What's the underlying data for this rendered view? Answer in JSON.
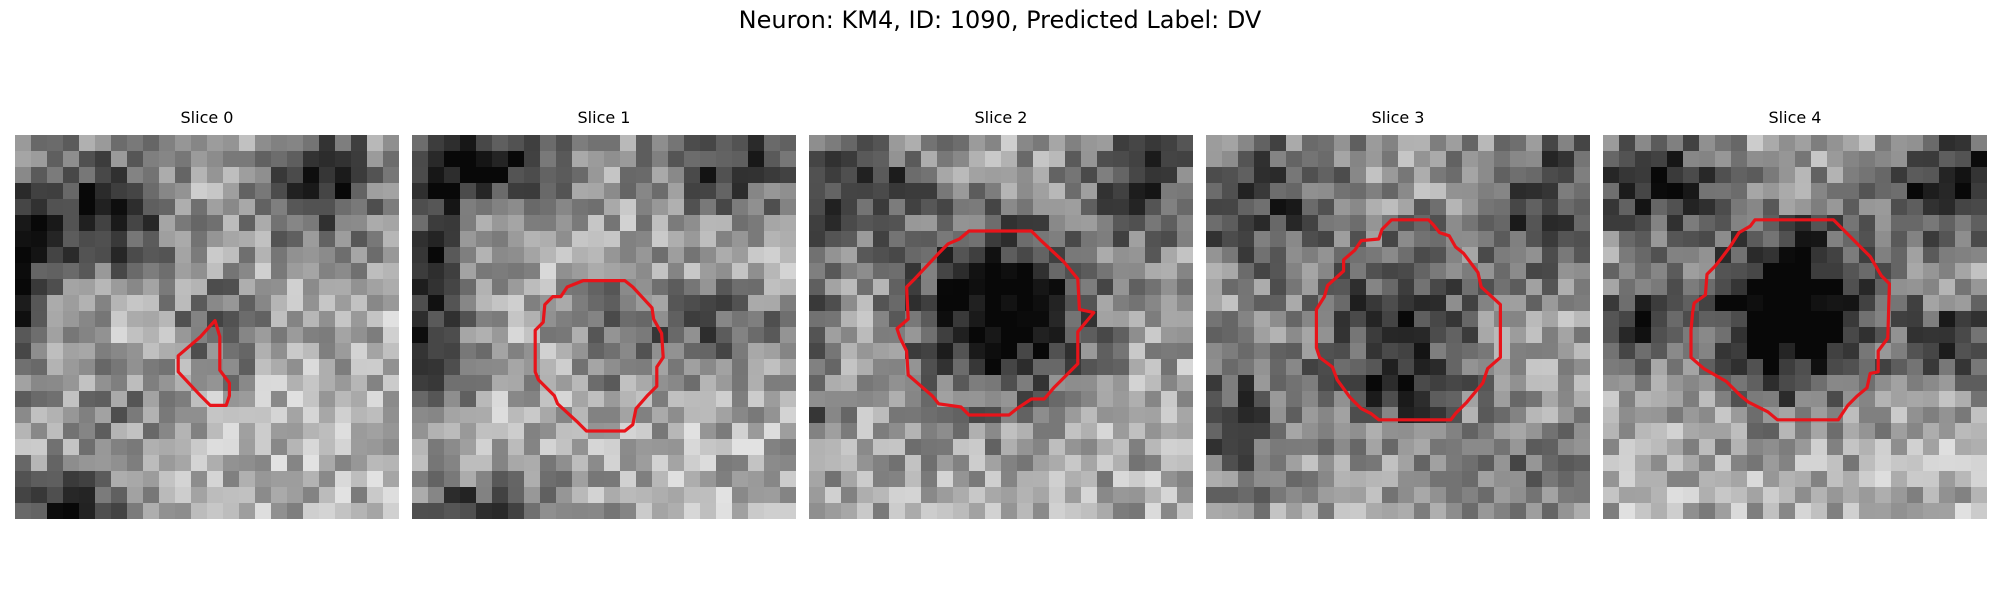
{
  "figure": {
    "title": "Neuron: KM4, ID: 1090, Predicted Label: DV",
    "contour_color": "#e8141a",
    "colormap": "grayscale",
    "grid_size": 24,
    "panels": [
      {
        "title": "Slice 0",
        "contour_icon": "roi-contour-small",
        "dark_blobs": [
          {
            "cx": 5,
            "cy": 5,
            "rx": 5,
            "ry": 4,
            "s": 0.6
          },
          {
            "cx": 19,
            "cy": 3,
            "rx": 4,
            "ry": 4,
            "s": 0.6
          },
          {
            "cx": 0,
            "cy": 9,
            "rx": 2,
            "ry": 7,
            "s": 0.6
          },
          {
            "cx": 13,
            "cy": 12,
            "rx": 3,
            "ry": 3,
            "s": 0.4
          },
          {
            "cx": 3,
            "cy": 23,
            "rx": 4,
            "ry": 2,
            "s": 0.6
          },
          {
            "cx": 6,
            "cy": 17,
            "rx": 3,
            "ry": 3,
            "s": 0.2
          }
        ],
        "base": 0.68,
        "contour": [
          [
            12.5,
            11.6
          ],
          [
            11.6,
            12.6
          ],
          [
            10.2,
            13.8
          ],
          [
            10.2,
            14.8
          ],
          [
            11.6,
            16.3
          ],
          [
            12.2,
            16.9
          ],
          [
            13.2,
            16.9
          ],
          [
            13.4,
            16.3
          ],
          [
            13.4,
            15.5
          ],
          [
            12.8,
            14.7
          ],
          [
            12.8,
            12.6
          ]
        ]
      },
      {
        "title": "Slice 1",
        "contour_icon": "roi-contour-medium",
        "dark_blobs": [
          {
            "cx": 5,
            "cy": 2,
            "rx": 6,
            "ry": 3,
            "s": 0.55
          },
          {
            "cx": 20,
            "cy": 2,
            "rx": 5,
            "ry": 3,
            "s": 0.5
          },
          {
            "cx": 1,
            "cy": 10,
            "rx": 3,
            "ry": 9,
            "s": 0.55
          },
          {
            "cx": 13,
            "cy": 12,
            "rx": 4,
            "ry": 4,
            "s": 0.3
          },
          {
            "cx": 20,
            "cy": 12,
            "rx": 4,
            "ry": 3,
            "s": 0.35
          },
          {
            "cx": 5,
            "cy": 23,
            "rx": 5,
            "ry": 2,
            "s": 0.4
          }
        ],
        "base": 0.68,
        "contour": [
          [
            10.7,
            9.1
          ],
          [
            13.3,
            9.1
          ],
          [
            13.8,
            9.5
          ],
          [
            15.0,
            10.8
          ],
          [
            15.1,
            11.5
          ],
          [
            15.6,
            12.4
          ],
          [
            15.7,
            13.9
          ],
          [
            15.3,
            14.5
          ],
          [
            15.3,
            15.7
          ],
          [
            14.7,
            16.3
          ],
          [
            14.0,
            17.1
          ],
          [
            13.8,
            18.1
          ],
          [
            13.3,
            18.5
          ],
          [
            10.9,
            18.5
          ],
          [
            10.3,
            17.9
          ],
          [
            9.1,
            16.8
          ],
          [
            8.9,
            16.3
          ],
          [
            7.9,
            15.3
          ],
          [
            7.7,
            14.8
          ],
          [
            7.7,
            12.2
          ],
          [
            8.2,
            11.7
          ],
          [
            8.3,
            10.6
          ],
          [
            8.8,
            10.1
          ],
          [
            9.3,
            10.1
          ],
          [
            9.7,
            9.5
          ]
        ]
      },
      {
        "title": "Slice 2",
        "contour_icon": "roi-contour-large",
        "dark_blobs": [
          {
            "cx": 12,
            "cy": 11,
            "rx": 6,
            "ry": 6,
            "s": 0.75
          },
          {
            "cx": 3,
            "cy": 3,
            "rx": 5,
            "ry": 4,
            "s": 0.45
          },
          {
            "cx": 21,
            "cy": 3,
            "rx": 4,
            "ry": 4,
            "s": 0.45
          },
          {
            "cx": 0,
            "cy": 13,
            "rx": 2,
            "ry": 8,
            "s": 0.4
          }
        ],
        "base": 0.66,
        "contour": [
          [
            10.0,
            6.0
          ],
          [
            13.9,
            6.0
          ],
          [
            14.5,
            6.6
          ],
          [
            15.9,
            7.9
          ],
          [
            16.8,
            9.0
          ],
          [
            16.9,
            10.9
          ],
          [
            17.8,
            11.1
          ],
          [
            16.8,
            12.3
          ],
          [
            16.8,
            14.3
          ],
          [
            16.3,
            14.8
          ],
          [
            15.3,
            15.8
          ],
          [
            14.7,
            16.5
          ],
          [
            13.9,
            16.5
          ],
          [
            13.0,
            17.1
          ],
          [
            12.5,
            17.5
          ],
          [
            10.0,
            17.5
          ],
          [
            9.5,
            17.0
          ],
          [
            8.1,
            16.8
          ],
          [
            7.7,
            16.3
          ],
          [
            6.2,
            15.0
          ],
          [
            6.1,
            13.5
          ],
          [
            5.7,
            12.7
          ],
          [
            5.5,
            12.1
          ],
          [
            6.2,
            11.5
          ],
          [
            6.1,
            9.5
          ],
          [
            6.6,
            9.0
          ],
          [
            8.1,
            7.4
          ],
          [
            8.7,
            6.8
          ],
          [
            9.4,
            6.5
          ]
        ]
      },
      {
        "title": "Slice 3",
        "contour_icon": "roi-contour-large",
        "dark_blobs": [
          {
            "cx": 12,
            "cy": 12,
            "rx": 6,
            "ry": 6,
            "s": 0.4
          },
          {
            "cx": 12,
            "cy": 16,
            "rx": 4,
            "ry": 2,
            "s": 0.35
          },
          {
            "cx": 3,
            "cy": 4,
            "rx": 6,
            "ry": 5,
            "s": 0.4
          },
          {
            "cx": 21,
            "cy": 4,
            "rx": 5,
            "ry": 5,
            "s": 0.4
          },
          {
            "cx": 2,
            "cy": 18,
            "rx": 4,
            "ry": 5,
            "s": 0.35
          },
          {
            "cx": 21,
            "cy": 21,
            "rx": 5,
            "ry": 3,
            "s": 0.25
          }
        ],
        "base": 0.64,
        "contour": [
          [
            11.6,
            5.3
          ],
          [
            13.9,
            5.3
          ],
          [
            14.2,
            5.6
          ],
          [
            14.6,
            6.1
          ],
          [
            15.2,
            6.3
          ],
          [
            15.6,
            7.0
          ],
          [
            16.1,
            7.4
          ],
          [
            17.0,
            8.6
          ],
          [
            17.2,
            9.5
          ],
          [
            18.4,
            10.6
          ],
          [
            18.4,
            13.9
          ],
          [
            17.6,
            14.6
          ],
          [
            17.3,
            15.5
          ],
          [
            16.3,
            16.7
          ],
          [
            15.6,
            17.4
          ],
          [
            15.3,
            17.8
          ],
          [
            14.7,
            17.8
          ],
          [
            10.8,
            17.8
          ],
          [
            10.3,
            17.4
          ],
          [
            9.7,
            17.1
          ],
          [
            9.0,
            16.4
          ],
          [
            8.2,
            15.3
          ],
          [
            7.9,
            14.5
          ],
          [
            7.1,
            13.9
          ],
          [
            6.9,
            13.3
          ],
          [
            6.9,
            10.9
          ],
          [
            7.4,
            10.1
          ],
          [
            7.6,
            9.4
          ],
          [
            8.6,
            8.5
          ],
          [
            8.6,
            7.8
          ],
          [
            9.3,
            7.2
          ],
          [
            9.7,
            6.6
          ],
          [
            10.8,
            6.5
          ],
          [
            11.0,
            5.9
          ]
        ]
      },
      {
        "title": "Slice 4",
        "contour_icon": "roi-contour-large",
        "dark_blobs": [
          {
            "cx": 12,
            "cy": 11,
            "rx": 6,
            "ry": 6,
            "s": 0.85
          },
          {
            "cx": 3,
            "cy": 3,
            "rx": 5,
            "ry": 4,
            "s": 0.55
          },
          {
            "cx": 22,
            "cy": 3,
            "rx": 5,
            "ry": 4,
            "s": 0.6
          },
          {
            "cx": 2,
            "cy": 12,
            "rx": 3,
            "ry": 3,
            "s": 0.5
          },
          {
            "cx": 22,
            "cy": 13,
            "rx": 3,
            "ry": 3,
            "s": 0.5
          }
        ],
        "base": 0.68,
        "contour": [
          [
            9.5,
            5.3
          ],
          [
            14.4,
            5.3
          ],
          [
            15.0,
            5.9
          ],
          [
            16.3,
            7.2
          ],
          [
            16.7,
            7.6
          ],
          [
            17.4,
            8.8
          ],
          [
            17.9,
            9.3
          ],
          [
            17.8,
            12.7
          ],
          [
            17.2,
            13.5
          ],
          [
            17.2,
            14.8
          ],
          [
            16.7,
            14.9
          ],
          [
            16.5,
            15.8
          ],
          [
            15.9,
            16.3
          ],
          [
            15.3,
            16.9
          ],
          [
            14.7,
            17.8
          ],
          [
            13.6,
            17.8
          ],
          [
            10.9,
            17.8
          ],
          [
            10.3,
            17.3
          ],
          [
            9.1,
            16.7
          ],
          [
            8.6,
            16.3
          ],
          [
            7.7,
            15.4
          ],
          [
            6.3,
            14.6
          ],
          [
            5.5,
            13.9
          ],
          [
            5.5,
            12.2
          ],
          [
            5.6,
            11.1
          ],
          [
            5.7,
            10.5
          ],
          [
            6.4,
            10.0
          ],
          [
            6.5,
            8.7
          ],
          [
            7.0,
            8.2
          ],
          [
            7.4,
            7.7
          ],
          [
            8.0,
            6.9
          ],
          [
            8.5,
            6.1
          ],
          [
            9.2,
            5.7
          ]
        ]
      }
    ]
  }
}
